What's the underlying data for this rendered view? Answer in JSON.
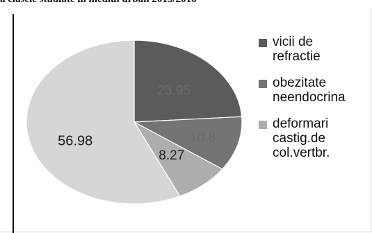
{
  "chart_data": {
    "type": "pie",
    "title": "a clasele studiate in mediul urban 2015/2016",
    "categories": [
      "vicii de refractie",
      "obezitate neendocrina",
      "deformari castig.de col.vertbr.",
      ""
    ],
    "legend_labels": [
      [
        "vicii de",
        "refractie"
      ],
      [
        "obezitate",
        "neendocrina"
      ],
      [
        "deformari",
        "castig.de",
        "col.vertbr."
      ]
    ],
    "values": [
      23.95,
      10.8,
      8.27,
      56.98
    ],
    "value_labels": [
      "23.95",
      "10.8",
      "8.27",
      "56.98"
    ],
    "colors": [
      "#5b5b5b",
      "#747474",
      "#adadad",
      "#d6d6d6"
    ],
    "label_colors": [
      "#6a6a6a",
      "#6a6a6a",
      "#222222",
      "#1a1a1a"
    ],
    "legend": "right"
  }
}
